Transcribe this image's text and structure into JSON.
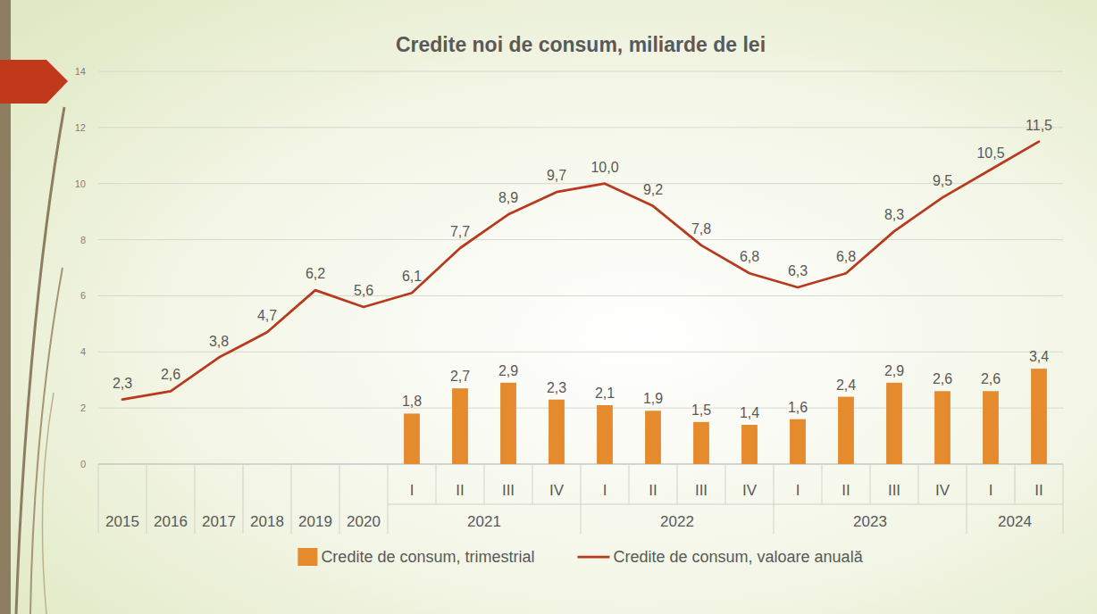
{
  "chart_data": {
    "type": "bar",
    "title": "Credite noi de consum, miliarde de lei",
    "categories": [
      "2015",
      "2016",
      "2017",
      "2018",
      "2019",
      "2020",
      "I",
      "II",
      "III",
      "IV",
      "I",
      "II",
      "III",
      "IV",
      "I",
      "II",
      "III",
      "IV",
      "I",
      "II"
    ],
    "category_groups": [
      null,
      null,
      null,
      null,
      null,
      null,
      "2021",
      "2021",
      "2021",
      "2021",
      "2022",
      "2022",
      "2022",
      "2022",
      "2023",
      "2023",
      "2023",
      "2023",
      "2024",
      "2024"
    ],
    "series": [
      {
        "name": "Credite de consum, trimestrial",
        "type": "bar",
        "color": "#e68a2e",
        "values": [
          null,
          null,
          null,
          null,
          null,
          null,
          1.8,
          2.7,
          2.9,
          2.3,
          2.1,
          1.9,
          1.5,
          1.4,
          1.6,
          2.4,
          2.9,
          2.6,
          2.6,
          3.4
        ],
        "value_labels": [
          null,
          null,
          null,
          null,
          null,
          null,
          "1,8",
          "2,7",
          "2,9",
          "2,3",
          "2,1",
          "1,9",
          "1,5",
          "1,4",
          "1,6",
          "2,4",
          "2,9",
          "2,6",
          "2,6",
          "3,4"
        ]
      },
      {
        "name": "Credite de consum, valoare anuală",
        "type": "line",
        "color": "#b83a1e",
        "values": [
          2.3,
          2.6,
          3.8,
          4.7,
          6.2,
          5.6,
          6.1,
          7.7,
          8.9,
          9.7,
          10.0,
          9.2,
          7.8,
          6.8,
          6.3,
          6.8,
          8.3,
          9.5,
          10.5,
          11.5
        ],
        "value_labels": [
          "2,3",
          "2,6",
          "3,8",
          "4,7",
          "6,2",
          "5,6",
          "6,1",
          "7,7",
          "8,9",
          "9,7",
          "10,0",
          "9,2",
          "7,8",
          "6,8",
          "6,3",
          "6,8",
          "8,3",
          "9,5",
          "10,5",
          "11,5"
        ]
      }
    ],
    "ylim": [
      0,
      14
    ],
    "yticks": [
      0,
      2,
      4,
      6,
      8,
      10,
      12,
      14
    ],
    "grid": true,
    "legend": "bottom",
    "data_labels": true
  }
}
